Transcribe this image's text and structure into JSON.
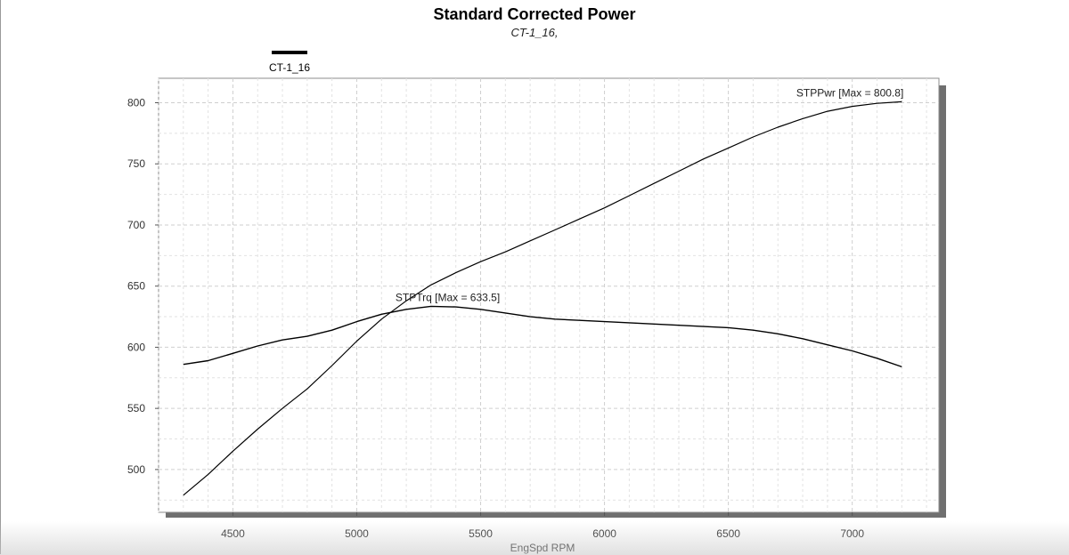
{
  "title": "Standard Corrected Power",
  "subtitle": "CT-1_16,",
  "legend": {
    "label": "CT-1_16",
    "color": "#000000",
    "placement": "top-left"
  },
  "chart_data": {
    "type": "line",
    "title": "Standard Corrected Power",
    "subtitle": "CT-1_16,",
    "xlabel": "EngSpd  RPM",
    "ylabel": "",
    "xlim": [
      4200,
      7350
    ],
    "ylim": [
      465,
      820
    ],
    "xticks": [
      4500,
      5000,
      5500,
      6000,
      6500,
      7000
    ],
    "yticks": [
      500,
      550,
      600,
      650,
      700,
      750,
      800
    ],
    "grid": true,
    "series": [
      {
        "name": "STPPwr",
        "annotation": "STPPwr [Max = 800.8]",
        "color": "#000000",
        "points": [
          [
            4300,
            479
          ],
          [
            4400,
            496
          ],
          [
            4500,
            515
          ],
          [
            4600,
            533
          ],
          [
            4700,
            550
          ],
          [
            4800,
            566
          ],
          [
            4900,
            585
          ],
          [
            5000,
            605
          ],
          [
            5100,
            623
          ],
          [
            5200,
            638
          ],
          [
            5300,
            651
          ],
          [
            5400,
            661
          ],
          [
            5500,
            670
          ],
          [
            5600,
            678
          ],
          [
            5700,
            687
          ],
          [
            5800,
            696
          ],
          [
            5900,
            705
          ],
          [
            6000,
            714
          ],
          [
            6100,
            724
          ],
          [
            6200,
            734
          ],
          [
            6300,
            744
          ],
          [
            6400,
            754
          ],
          [
            6500,
            763
          ],
          [
            6600,
            772
          ],
          [
            6700,
            780
          ],
          [
            6800,
            787
          ],
          [
            6900,
            793
          ],
          [
            7000,
            797
          ],
          [
            7100,
            799.5
          ],
          [
            7200,
            800.8
          ]
        ]
      },
      {
        "name": "STPTrq",
        "annotation": "STPTrq [Max = 633.5]",
        "color": "#000000",
        "points": [
          [
            4300,
            586
          ],
          [
            4400,
            589
          ],
          [
            4500,
            595
          ],
          [
            4600,
            601
          ],
          [
            4700,
            606
          ],
          [
            4800,
            609
          ],
          [
            4900,
            614
          ],
          [
            5000,
            621
          ],
          [
            5100,
            627
          ],
          [
            5200,
            631
          ],
          [
            5300,
            633.5
          ],
          [
            5400,
            633
          ],
          [
            5500,
            631
          ],
          [
            5600,
            628
          ],
          [
            5700,
            625
          ],
          [
            5800,
            623
          ],
          [
            5900,
            622
          ],
          [
            6000,
            621
          ],
          [
            6100,
            620
          ],
          [
            6200,
            619
          ],
          [
            6300,
            618
          ],
          [
            6400,
            617
          ],
          [
            6500,
            616
          ],
          [
            6600,
            614
          ],
          [
            6700,
            611
          ],
          [
            6800,
            607
          ],
          [
            6900,
            602
          ],
          [
            7000,
            597
          ],
          [
            7100,
            591
          ],
          [
            7200,
            584
          ]
        ]
      }
    ]
  }
}
